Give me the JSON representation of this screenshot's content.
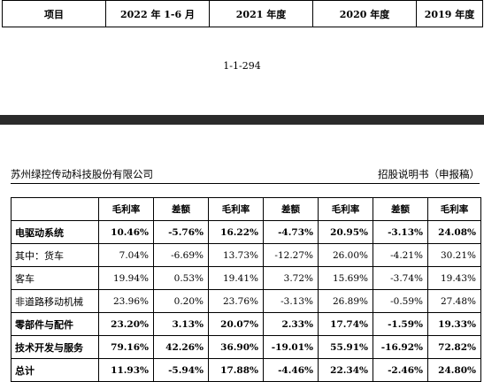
{
  "top_header": {
    "cells": [
      "项目",
      "2022 年 1-6 月",
      "2021 年度",
      "2020 年度",
      "2019 年度"
    ]
  },
  "page_number": "1-1-294",
  "running_header": {
    "company": "苏州绿控传动科技股份有限公司",
    "document": "招股说明书（申报稿）"
  },
  "table": {
    "headers": [
      "",
      "毛利率",
      "差额",
      "毛利率",
      "差额",
      "毛利率",
      "差额",
      "毛利率"
    ],
    "rows": [
      {
        "label": "电驱动系统",
        "bold": true,
        "values": [
          "10.46%",
          "-5.76%",
          "16.22%",
          "-4.73%",
          "20.95%",
          "-3.13%",
          "24.08%"
        ]
      },
      {
        "label": "其中：货车",
        "bold": false,
        "values": [
          "7.04%",
          "-6.69%",
          "13.73%",
          "-12.27%",
          "26.00%",
          "-4.21%",
          "30.21%"
        ]
      },
      {
        "label": "客车",
        "bold": false,
        "values": [
          "19.94%",
          "0.53%",
          "19.41%",
          "3.72%",
          "15.69%",
          "-3.74%",
          "19.43%"
        ]
      },
      {
        "label": "非道路移动机械",
        "bold": false,
        "values": [
          "23.96%",
          "0.20%",
          "23.76%",
          "-3.13%",
          "26.89%",
          "-0.59%",
          "27.48%"
        ]
      },
      {
        "label": "零部件与配件",
        "bold": true,
        "values": [
          "23.20%",
          "3.13%",
          "20.07%",
          "2.33%",
          "17.74%",
          "-1.59%",
          "19.33%"
        ]
      },
      {
        "label": "技术开发与服务",
        "bold": true,
        "values": [
          "79.16%",
          "42.26%",
          "36.90%",
          "-19.01%",
          "55.91%",
          "-16.92%",
          "72.82%"
        ]
      },
      {
        "label": "总计",
        "bold": true,
        "values": [
          "11.93%",
          "-5.94%",
          "17.88%",
          "-4.46%",
          "22.34%",
          "-2.46%",
          "24.80%"
        ]
      }
    ]
  }
}
